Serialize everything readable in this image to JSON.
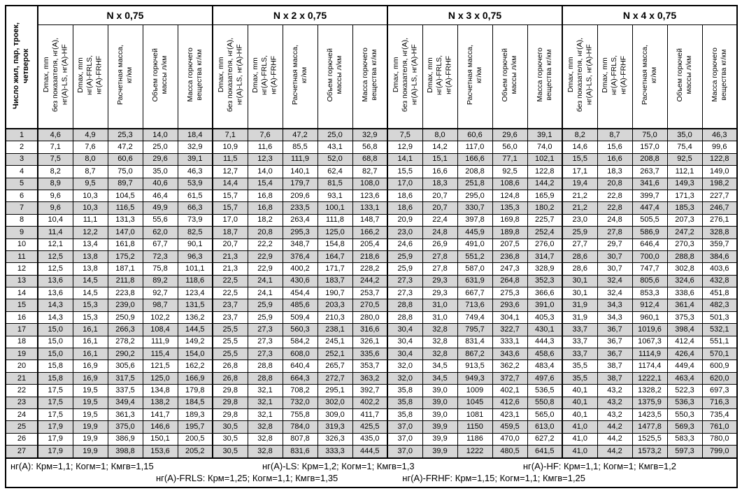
{
  "table": {
    "row_axis_header": "Число жил, пар, троек,\nчетверок",
    "groups": [
      {
        "title": "N x 0,75"
      },
      {
        "title": "N x 2 x 0,75"
      },
      {
        "title": "N x 3 x 0,75"
      },
      {
        "title": "N x 4 x 0,75"
      }
    ],
    "sub_headers": [
      "Dmax, mm\nбез показателя, нг(А),\nнг(А)-LS, нг(А)-HF",
      "Dmax, mm\nнг(А)-FRLS,\nнг(А)-FRHF",
      "Расчетная масса,\nкг/км",
      "Объем горючей\nмассы л/км",
      "Масса горючего\nвещества кг/км"
    ],
    "rows": [
      {
        "n": "1",
        "values": [
          "4,6",
          "4,9",
          "25,3",
          "14,0",
          "18,4",
          "7,1",
          "7,6",
          "47,2",
          "25,0",
          "32,9",
          "7,5",
          "8,0",
          "60,6",
          "29,6",
          "39,1",
          "8,2",
          "8,7",
          "75,0",
          "35,0",
          "46,3"
        ]
      },
      {
        "n": "2",
        "values": [
          "7,1",
          "7,6",
          "47,2",
          "25,0",
          "32,9",
          "10,9",
          "11,6",
          "85,5",
          "43,1",
          "56,8",
          "12,9",
          "14,2",
          "117,0",
          "56,0",
          "74,0",
          "14,6",
          "15,6",
          "157,0",
          "75,4",
          "99,6"
        ]
      },
      {
        "n": "3",
        "values": [
          "7,5",
          "8,0",
          "60,6",
          "29,6",
          "39,1",
          "11,5",
          "12,3",
          "111,9",
          "52,0",
          "68,8",
          "14,1",
          "15,1",
          "166,6",
          "77,1",
          "102,1",
          "15,5",
          "16,6",
          "208,8",
          "92,5",
          "122,8"
        ]
      },
      {
        "n": "4",
        "values": [
          "8,2",
          "8,7",
          "75,0",
          "35,0",
          "46,3",
          "12,7",
          "14,0",
          "140,1",
          "62,4",
          "82,7",
          "15,5",
          "16,6",
          "208,8",
          "92,5",
          "122,8",
          "17,1",
          "18,3",
          "263,7",
          "112,1",
          "149,0"
        ]
      },
      {
        "n": "5",
        "values": [
          "8,9",
          "9,5",
          "89,7",
          "40,6",
          "53,9",
          "14,4",
          "15,4",
          "179,7",
          "81,5",
          "108,0",
          "17,0",
          "18,3",
          "251,8",
          "108,6",
          "144,2",
          "19,4",
          "20,8",
          "341,6",
          "149,3",
          "198,2"
        ]
      },
      {
        "n": "6",
        "values": [
          "9,6",
          "10,3",
          "104,5",
          "46,4",
          "61,5",
          "15,7",
          "16,8",
          "209,6",
          "93,1",
          "123,6",
          "18,6",
          "20,7",
          "295,0",
          "124,8",
          "165,9",
          "21,2",
          "22,8",
          "399,7",
          "171,3",
          "227,7"
        ]
      },
      {
        "n": "7",
        "values": [
          "9,6",
          "10,3",
          "116,5",
          "49,9",
          "66,3",
          "15,7",
          "16,8",
          "233,5",
          "100,1",
          "133,1",
          "18,6",
          "20,7",
          "330,7",
          "135,3",
          "180,2",
          "21,2",
          "22,8",
          "447,4",
          "185,3",
          "246,7"
        ]
      },
      {
        "n": "8",
        "values": [
          "10,4",
          "11,1",
          "131,3",
          "55,6",
          "73,9",
          "17,0",
          "18,2",
          "263,4",
          "111,8",
          "148,7",
          "20,9",
          "22,4",
          "397,8",
          "169,8",
          "225,7",
          "23,0",
          "24,8",
          "505,5",
          "207,3",
          "276,1"
        ]
      },
      {
        "n": "9",
        "values": [
          "11,4",
          "12,2",
          "147,0",
          "62,0",
          "82,5",
          "18,7",
          "20,8",
          "295,3",
          "125,0",
          "166,2",
          "23,0",
          "24,8",
          "445,9",
          "189,8",
          "252,4",
          "25,9",
          "27,8",
          "586,9",
          "247,2",
          "328,8"
        ]
      },
      {
        "n": "10",
        "values": [
          "12,1",
          "13,4",
          "161,8",
          "67,7",
          "90,1",
          "20,7",
          "22,2",
          "348,7",
          "154,8",
          "205,4",
          "24,6",
          "26,9",
          "491,0",
          "207,5",
          "276,0",
          "27,7",
          "29,7",
          "646,4",
          "270,3",
          "359,7"
        ]
      },
      {
        "n": "11",
        "values": [
          "12,5",
          "13,8",
          "175,2",
          "72,3",
          "96,3",
          "21,3",
          "22,9",
          "376,4",
          "164,7",
          "218,6",
          "25,9",
          "27,8",
          "551,2",
          "236,8",
          "314,7",
          "28,6",
          "30,7",
          "700,0",
          "288,8",
          "384,6"
        ]
      },
      {
        "n": "12",
        "values": [
          "12,5",
          "13,8",
          "187,1",
          "75,8",
          "101,1",
          "21,3",
          "22,9",
          "400,2",
          "171,7",
          "228,2",
          "25,9",
          "27,8",
          "587,0",
          "247,3",
          "328,9",
          "28,6",
          "30,7",
          "747,7",
          "302,8",
          "403,6"
        ]
      },
      {
        "n": "13",
        "values": [
          "13,6",
          "14,5",
          "211,8",
          "89,2",
          "118,6",
          "22,5",
          "24,1",
          "430,6",
          "183,7",
          "244,2",
          "27,3",
          "29,3",
          "631,9",
          "264,8",
          "352,3",
          "30,1",
          "32,4",
          "805,6",
          "324,6",
          "432,8"
        ]
      },
      {
        "n": "14",
        "values": [
          "13,6",
          "14,5",
          "223,8",
          "92,7",
          "123,4",
          "22,5",
          "24,1",
          "454,4",
          "190,7",
          "253,7",
          "27,3",
          "29,3",
          "667,7",
          "275,3",
          "366,6",
          "30,1",
          "32,4",
          "853,3",
          "338,6",
          "451,8"
        ]
      },
      {
        "n": "15",
        "values": [
          "14,3",
          "15,3",
          "239,0",
          "98,7",
          "131,5",
          "23,7",
          "25,9",
          "485,6",
          "203,3",
          "270,5",
          "28,8",
          "31,0",
          "713,6",
          "293,6",
          "391,0",
          "31,9",
          "34,3",
          "912,4",
          "361,4",
          "482,3"
        ]
      },
      {
        "n": "16",
        "values": [
          "14,3",
          "15,3",
          "250,9",
          "102,2",
          "136,2",
          "23,7",
          "25,9",
          "509,4",
          "210,3",
          "280,0",
          "28,8",
          "31,0",
          "749,4",
          "304,1",
          "405,3",
          "31,9",
          "34,3",
          "960,1",
          "375,3",
          "501,3"
        ]
      },
      {
        "n": "17",
        "values": [
          "15,0",
          "16,1",
          "266,3",
          "108,4",
          "144,5",
          "25,5",
          "27,3",
          "560,3",
          "238,1",
          "316,6",
          "30,4",
          "32,8",
          "795,7",
          "322,7",
          "430,1",
          "33,7",
          "36,7",
          "1019,6",
          "398,4",
          "532,1"
        ]
      },
      {
        "n": "18",
        "values": [
          "15,0",
          "16,1",
          "278,2",
          "111,9",
          "149,2",
          "25,5",
          "27,3",
          "584,2",
          "245,1",
          "326,1",
          "30,4",
          "32,8",
          "831,4",
          "333,1",
          "444,3",
          "33,7",
          "36,7",
          "1067,3",
          "412,4",
          "551,1"
        ]
      },
      {
        "n": "19",
        "values": [
          "15,0",
          "16,1",
          "290,2",
          "115,4",
          "154,0",
          "25,5",
          "27,3",
          "608,0",
          "252,1",
          "335,6",
          "30,4",
          "32,8",
          "867,2",
          "343,6",
          "458,6",
          "33,7",
          "36,7",
          "1114,9",
          "426,4",
          "570,1"
        ]
      },
      {
        "n": "20",
        "values": [
          "15,8",
          "16,9",
          "305,6",
          "121,5",
          "162,2",
          "26,8",
          "28,8",
          "640,4",
          "265,7",
          "353,7",
          "32,0",
          "34,5",
          "913,5",
          "362,2",
          "483,4",
          "35,5",
          "38,7",
          "1174,4",
          "449,4",
          "600,9"
        ]
      },
      {
        "n": "21",
        "values": [
          "15,8",
          "16,9",
          "317,5",
          "125,0",
          "166,9",
          "26,8",
          "28,8",
          "664,3",
          "272,7",
          "363,2",
          "32,0",
          "34,5",
          "949,3",
          "372,7",
          "497,6",
          "35,5",
          "38,7",
          "1222,1",
          "463,4",
          "620,0"
        ]
      },
      {
        "n": "22",
        "values": [
          "17,5",
          "19,5",
          "337,5",
          "134,8",
          "179,8",
          "29,8",
          "32,1",
          "708,2",
          "295,1",
          "392,7",
          "35,8",
          "39,0",
          "1009",
          "402,1",
          "536,5",
          "40,1",
          "43,2",
          "1328,2",
          "522,3",
          "697,3"
        ]
      },
      {
        "n": "23",
        "values": [
          "17,5",
          "19,5",
          "349,4",
          "138,2",
          "184,5",
          "29,8",
          "32,1",
          "732,0",
          "302,0",
          "402,2",
          "35,8",
          "39,0",
          "1045",
          "412,6",
          "550,8",
          "40,1",
          "43,2",
          "1375,9",
          "536,3",
          "716,3"
        ]
      },
      {
        "n": "24",
        "values": [
          "17,5",
          "19,5",
          "361,3",
          "141,7",
          "189,3",
          "29,8",
          "32,1",
          "755,8",
          "309,0",
          "411,7",
          "35,8",
          "39,0",
          "1081",
          "423,1",
          "565,0",
          "40,1",
          "43,2",
          "1423,5",
          "550,3",
          "735,4"
        ]
      },
      {
        "n": "25",
        "values": [
          "17,9",
          "19,9",
          "375,0",
          "146,6",
          "195,7",
          "30,5",
          "32,8",
          "784,0",
          "319,3",
          "425,5",
          "37,0",
          "39,9",
          "1150",
          "459,5",
          "613,0",
          "41,0",
          "44,2",
          "1477,8",
          "569,3",
          "761,0"
        ]
      },
      {
        "n": "26",
        "values": [
          "17,9",
          "19,9",
          "386,9",
          "150,1",
          "200,5",
          "30,5",
          "32,8",
          "807,8",
          "326,3",
          "435,0",
          "37,0",
          "39,9",
          "1186",
          "470,0",
          "627,2",
          "41,0",
          "44,2",
          "1525,5",
          "583,3",
          "780,0"
        ]
      },
      {
        "n": "27",
        "values": [
          "17,9",
          "19,9",
          "398,8",
          "153,6",
          "205,2",
          "30,5",
          "32,8",
          "831,6",
          "333,3",
          "444,5",
          "37,0",
          "39,9",
          "1222",
          "480,5",
          "641,5",
          "41,0",
          "44,2",
          "1573,2",
          "597,3",
          "799,0"
        ]
      }
    ]
  },
  "footnotes": {
    "line1": [
      "нг(А): Крм=1,1;  Когм=1;  Кмгв=1,15",
      "нг(А)-LS: Крм=1,2;  Когм=1;  Кмгв=1,3",
      "нг(А)-HF: Крм=1,1;  Когм=1;  Кмгв=1,2"
    ],
    "line2": [
      "нг(А)-FRLS: Крм=1,25;  Когм=1,1;  Кмгв=1,35",
      "нг(А)-FRHF: Крм=1,15;  Когм=1,1;  Кмгв=1,25"
    ]
  },
  "colors": {
    "row_shade": "#d6d6d6",
    "border": "#000000"
  }
}
